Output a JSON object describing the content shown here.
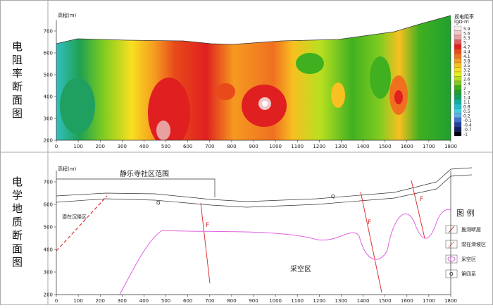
{
  "left_labels": [
    "电阻率断面图",
    "电学地质断面图"
  ],
  "top": {
    "y_axis_label": "高程(m)",
    "xlim": [
      0,
      1800
    ],
    "ylim": [
      200,
      750
    ],
    "xticks": [
      0,
      100,
      200,
      300,
      400,
      500,
      600,
      700,
      800,
      900,
      1000,
      1100,
      1200,
      1300,
      1400,
      1500,
      1600,
      1700,
      1800
    ],
    "yticks": [
      200,
      300,
      400,
      500,
      600,
      700
    ],
    "colorbar": {
      "title": "视电阻率",
      "unit": "lgΩ·m",
      "values": [
        5.9,
        5.6,
        5.3,
        5,
        4.7,
        4.4,
        4.1,
        3.8,
        3.5,
        3.2,
        2.9,
        2.6,
        2.3,
        2,
        1.7,
        1.4,
        1.1,
        0.8,
        0.5,
        0.2,
        -0.1,
        -0.4,
        -0.7,
        -1
      ],
      "colors": [
        "#f6ecec",
        "#f0c8c8",
        "#e8a0a0",
        "#e06060",
        "#e02020",
        "#e84a1a",
        "#f07020",
        "#f59a20",
        "#f8c020",
        "#f8e020",
        "#e8f020",
        "#b8e020",
        "#80cc20",
        "#40b020",
        "#20a030",
        "#10a060",
        "#10b0a0",
        "#20c0c8",
        "#40d0e0",
        "#60b0e8",
        "#4070d0",
        "#2040a0",
        "#102060",
        "#000010"
      ]
    }
  },
  "bottom": {
    "y_axis_label": "高程(m)",
    "xlim": [
      0,
      1800
    ],
    "ylim": [
      200,
      750
    ],
    "xticks": [
      0,
      100,
      200,
      300,
      400,
      500,
      600,
      700,
      800,
      900,
      1000,
      1100,
      1200,
      1300,
      1400,
      1500,
      1600,
      1700,
      1800
    ],
    "yticks": [
      200,
      300,
      400,
      500,
      600,
      700
    ],
    "community": "静乐寺社区范围",
    "subsidence": "潜在沉降区",
    "faults": [
      "F",
      "F",
      "F"
    ],
    "quaternary": [
      "Q",
      "Q"
    ],
    "goaf": "采空区",
    "legend": {
      "title": "图 例",
      "items": [
        "推测断层",
        "潜在滑坡区",
        "采空区",
        "第四系"
      ]
    }
  }
}
